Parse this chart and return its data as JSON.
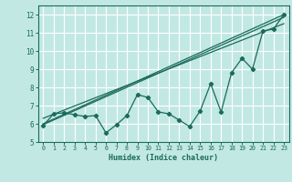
{
  "title": "",
  "xlabel": "Humidex (Indice chaleur)",
  "ylabel": "",
  "bg_color": "#c2e8e4",
  "grid_color": "#ffffff",
  "line_color": "#1a6b5a",
  "xlim": [
    -0.5,
    23.5
  ],
  "ylim": [
    5,
    12.5
  ],
  "xticks": [
    0,
    1,
    2,
    3,
    4,
    5,
    6,
    7,
    8,
    9,
    10,
    11,
    12,
    13,
    14,
    15,
    16,
    17,
    18,
    19,
    20,
    21,
    22,
    23
  ],
  "yticks": [
    5,
    6,
    7,
    8,
    9,
    10,
    11,
    12
  ],
  "main_x": [
    0,
    1,
    2,
    3,
    4,
    5,
    6,
    7,
    8,
    9,
    10,
    11,
    12,
    13,
    14,
    15,
    16,
    17,
    18,
    19,
    20,
    21,
    22,
    23
  ],
  "main_y": [
    5.9,
    6.55,
    6.6,
    6.5,
    6.4,
    6.45,
    5.5,
    5.95,
    6.45,
    7.6,
    7.45,
    6.65,
    6.55,
    6.2,
    5.85,
    6.7,
    8.2,
    6.65,
    8.8,
    9.6,
    9.0,
    11.1,
    11.2,
    12.0
  ],
  "line1_x": [
    0,
    23
  ],
  "line1_y": [
    6.0,
    12.0
  ],
  "line2_x": [
    0,
    23
  ],
  "line2_y": [
    5.95,
    11.85
  ],
  "line3_x": [
    0,
    23
  ],
  "line3_y": [
    6.3,
    11.5
  ]
}
